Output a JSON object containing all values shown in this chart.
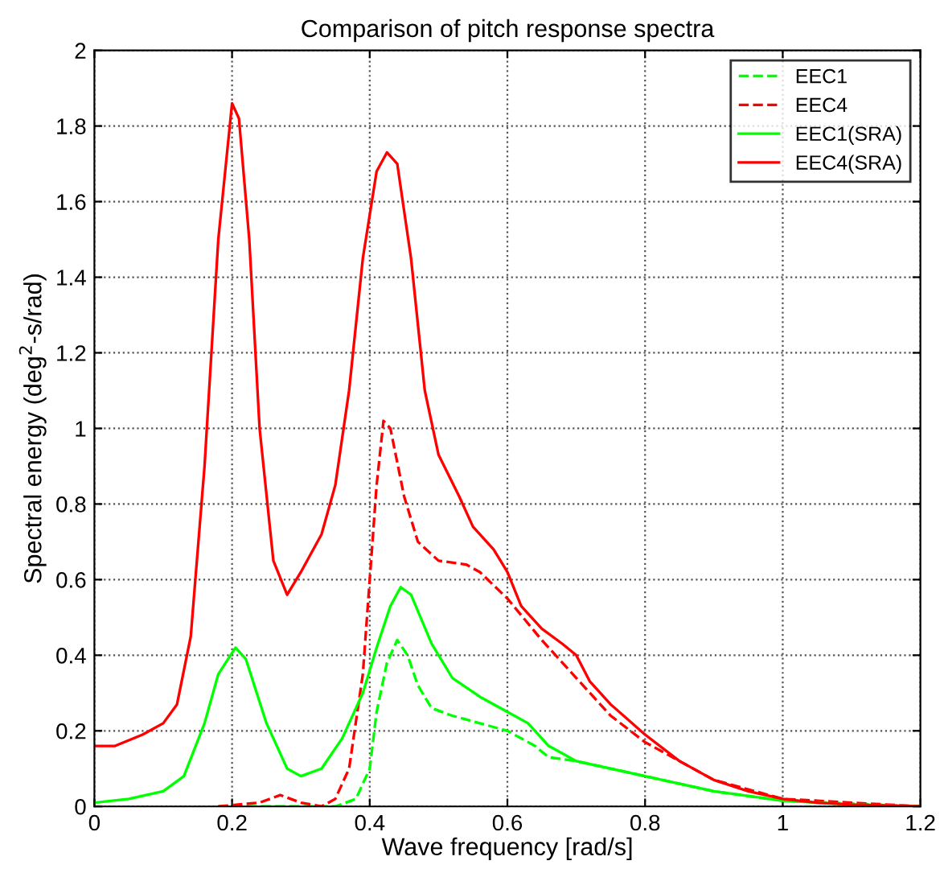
{
  "chart_data": {
    "type": "line",
    "title": "Comparison of pitch response spectra",
    "xlabel": "Wave frequency [rad/s]",
    "ylabel": "Spectral energy (deg$^{2}$-s/rad)",
    "xlim": [
      0,
      1.2
    ],
    "xticks": [
      0,
      0.2,
      0.4,
      0.6,
      0.8,
      1,
      1.2
    ],
    "ylim": [
      0,
      2
    ],
    "yticks": [
      0,
      0.2,
      0.4,
      0.6,
      0.8,
      1,
      1.2,
      1.4,
      1.6,
      1.8,
      2
    ],
    "grid": true,
    "legend": "top right",
    "series": [
      {
        "name": "EEC1",
        "color": "#00ff00",
        "line_style": "dashed",
        "x": [
          0.18,
          0.3,
          0.35,
          0.38,
          0.4,
          0.41,
          0.425,
          0.44,
          0.455,
          0.47,
          0.49,
          0.52,
          0.56,
          0.6,
          0.64,
          0.66,
          0.7,
          0.8,
          0.9,
          1.0,
          1.2
        ],
        "values": [
          0,
          0,
          0,
          0.02,
          0.1,
          0.25,
          0.38,
          0.44,
          0.4,
          0.32,
          0.26,
          0.24,
          0.22,
          0.2,
          0.16,
          0.13,
          0.12,
          0.08,
          0.04,
          0.015,
          0
        ]
      },
      {
        "name": "EEC4",
        "color": "#ff0000",
        "line_style": "dashed",
        "x": [
          0.18,
          0.24,
          0.27,
          0.3,
          0.33,
          0.35,
          0.37,
          0.39,
          0.41,
          0.42,
          0.43,
          0.45,
          0.47,
          0.5,
          0.54,
          0.56,
          0.6,
          0.65,
          0.7,
          0.75,
          0.8,
          0.85,
          0.9,
          1.0,
          1.2
        ],
        "values": [
          0,
          0.01,
          0.03,
          0.01,
          0,
          0.02,
          0.1,
          0.35,
          0.85,
          1.02,
          1.0,
          0.82,
          0.7,
          0.65,
          0.64,
          0.62,
          0.55,
          0.44,
          0.34,
          0.24,
          0.17,
          0.12,
          0.07,
          0.02,
          0
        ]
      },
      {
        "name": "EEC1(SRA)",
        "color": "#00ff00",
        "line_style": "solid",
        "x": [
          0,
          0.05,
          0.1,
          0.13,
          0.16,
          0.18,
          0.205,
          0.22,
          0.25,
          0.28,
          0.3,
          0.33,
          0.36,
          0.39,
          0.41,
          0.43,
          0.445,
          0.46,
          0.49,
          0.52,
          0.56,
          0.6,
          0.63,
          0.66,
          0.7,
          0.8,
          0.9,
          1.0,
          1.1,
          1.2
        ],
        "values": [
          0.01,
          0.02,
          0.04,
          0.08,
          0.22,
          0.35,
          0.42,
          0.39,
          0.22,
          0.1,
          0.08,
          0.1,
          0.18,
          0.3,
          0.42,
          0.53,
          0.58,
          0.56,
          0.43,
          0.34,
          0.29,
          0.25,
          0.22,
          0.16,
          0.12,
          0.08,
          0.04,
          0.015,
          0.005,
          0
        ]
      },
      {
        "name": "EEC4(SRA)",
        "color": "#ff0000",
        "line_style": "solid",
        "x": [
          0,
          0.03,
          0.07,
          0.1,
          0.12,
          0.14,
          0.16,
          0.18,
          0.2,
          0.21,
          0.225,
          0.24,
          0.26,
          0.28,
          0.3,
          0.33,
          0.35,
          0.37,
          0.39,
          0.41,
          0.425,
          0.44,
          0.46,
          0.48,
          0.5,
          0.53,
          0.55,
          0.58,
          0.6,
          0.62,
          0.65,
          0.68,
          0.7,
          0.72,
          0.75,
          0.8,
          0.85,
          0.9,
          0.95,
          1.0,
          1.05,
          1.1,
          1.2
        ],
        "values": [
          0.16,
          0.16,
          0.19,
          0.22,
          0.27,
          0.45,
          0.9,
          1.5,
          1.86,
          1.82,
          1.5,
          1.0,
          0.65,
          0.56,
          0.62,
          0.72,
          0.85,
          1.1,
          1.45,
          1.68,
          1.73,
          1.7,
          1.45,
          1.1,
          0.93,
          0.82,
          0.74,
          0.68,
          0.62,
          0.53,
          0.47,
          0.43,
          0.4,
          0.33,
          0.27,
          0.19,
          0.12,
          0.07,
          0.04,
          0.02,
          0.01,
          0.005,
          0
        ]
      }
    ]
  }
}
